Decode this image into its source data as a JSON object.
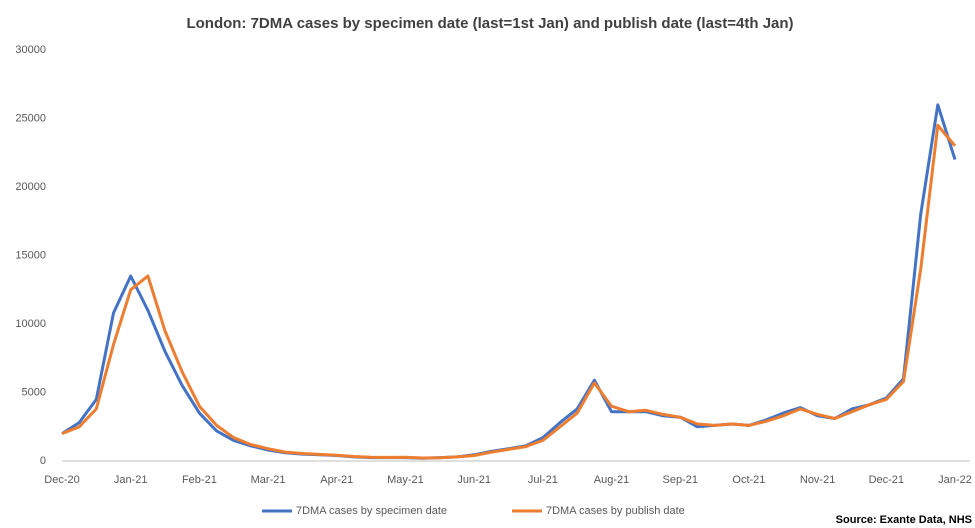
{
  "chart_data": {
    "type": "line",
    "title": "London: 7DMA cases by specimen date (last=1st Jan) and publish date (last=4th Jan)",
    "source": "Source: Exante Data, NHS",
    "categories": [
      "Dec-20",
      null,
      null,
      null,
      "Jan-21",
      null,
      null,
      null,
      "Feb-21",
      null,
      null,
      null,
      "Mar-21",
      null,
      null,
      null,
      "Apr-21",
      null,
      null,
      null,
      "May-21",
      null,
      null,
      null,
      "Jun-21",
      null,
      null,
      null,
      "Jul-21",
      null,
      null,
      null,
      "Aug-21",
      null,
      null,
      null,
      "Sep-21",
      null,
      null,
      null,
      "Oct-21",
      null,
      null,
      null,
      "Nov-21",
      null,
      null,
      null,
      "Dec-21",
      null,
      null,
      null,
      "Jan-22"
    ],
    "series": [
      {
        "name": "7DMA cases by specimen date",
        "color": "#4472c4",
        "values": [
          2000,
          2800,
          4500,
          10800,
          13500,
          11000,
          8000,
          5500,
          3500,
          2200,
          1500,
          1100,
          800,
          600,
          500,
          450,
          400,
          300,
          250,
          250,
          250,
          200,
          250,
          300,
          450,
          700,
          900,
          1100,
          1700,
          2800,
          3800,
          5900,
          3600,
          3600,
          3600,
          3300,
          3200,
          2500,
          2600,
          2700,
          2600,
          3000,
          3500,
          3900,
          3300,
          3100,
          3800,
          4100,
          4600,
          6000,
          18000,
          26000,
          22000
        ]
      },
      {
        "name": "7DMA cases by publish date",
        "color": "#ed7d31",
        "values": [
          2000,
          2500,
          3800,
          8500,
          12500,
          13500,
          9500,
          6500,
          4000,
          2600,
          1700,
          1200,
          900,
          650,
          550,
          480,
          420,
          330,
          280,
          260,
          270,
          220,
          240,
          300,
          400,
          650,
          850,
          1050,
          1500,
          2500,
          3500,
          5700,
          4000,
          3600,
          3700,
          3400,
          3200,
          2700,
          2600,
          2700,
          2600,
          2900,
          3300,
          3800,
          3400,
          3100,
          3600,
          4100,
          4500,
          5800,
          14000,
          24500,
          23000
        ]
      }
    ],
    "ylim": [
      0,
      30000
    ],
    "yticks": [
      0,
      5000,
      10000,
      15000,
      20000,
      25000,
      30000
    ],
    "grid": false
  }
}
